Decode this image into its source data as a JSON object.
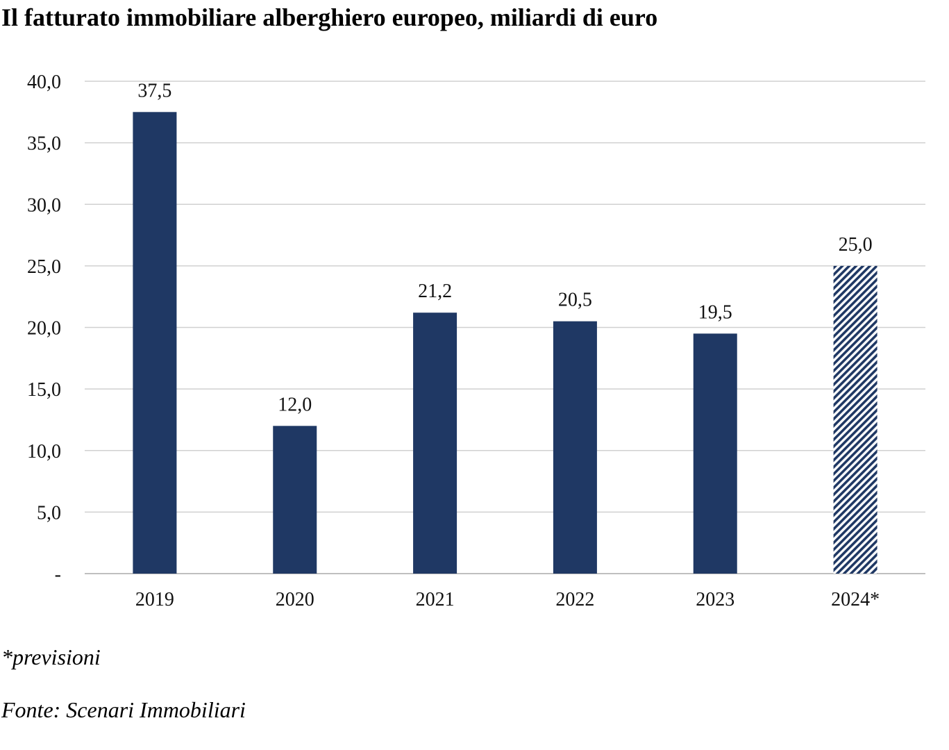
{
  "chart_data": {
    "type": "bar",
    "title": "Il fatturato immobiliare alberghiero europeo, miliardi di euro",
    "categories": [
      "2019",
      "2020",
      "2021",
      "2022",
      "2023",
      "2024*"
    ],
    "values": [
      37.5,
      12.0,
      21.2,
      20.5,
      19.5,
      25.0
    ],
    "value_labels": [
      "37,5",
      "12,0",
      "21,2",
      "20,5",
      "19,5",
      "25,0"
    ],
    "forecast": [
      false,
      false,
      false,
      false,
      false,
      true
    ],
    "ylim": [
      0,
      40
    ],
    "yticks": [
      0,
      5,
      10,
      15,
      20,
      25,
      30,
      35,
      40
    ],
    "ytick_labels": [
      "-",
      "5,0",
      "10,0",
      "15,0",
      "20,0",
      "25,0",
      "30,0",
      "35,0",
      "40,0"
    ],
    "xlabel": "",
    "ylabel": "",
    "grid": true,
    "legend": "none",
    "colors": {
      "bar": "#1f3864",
      "forecast_hatch": "#1f3864",
      "gridline": "#d0d0d0",
      "axis": "#bfbfbf"
    }
  },
  "footnotes": {
    "note": "*previsioni",
    "source": "Fonte: Scenari Immobiliari"
  }
}
